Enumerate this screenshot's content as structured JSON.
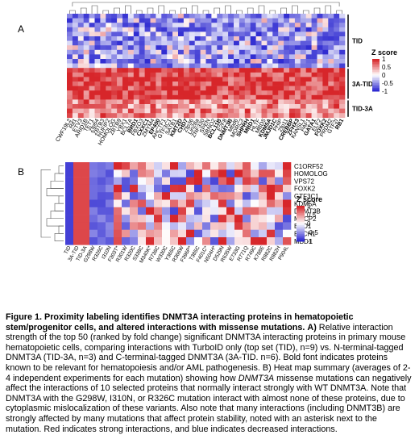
{
  "panel_a": {
    "label": "A",
    "group_labels": [
      "TID",
      "3A-TID",
      "TID-3A"
    ],
    "legend": {
      "title": "Z score",
      "ticks": [
        "1",
        "0.5",
        "0",
        "-0.5",
        "-1"
      ]
    },
    "columns": [
      "CWF19L2",
      "Rif1",
      "ETV3",
      "ARID1B",
      "TET1",
      "Zfp64",
      "ZBTB3",
      "NUFIP2",
      "HOMOLOG",
      "ZBTB9",
      "YBX1",
      "BCL7A",
      "BRD1",
      "FBXO3",
      "CXXC1",
      "ZMYM4",
      "EP400",
      "AHCTF1",
      "GTF3C1",
      "SATB1",
      "KMT2D",
      "CHD7",
      "Zfp36",
      "Lin28a",
      "ZNF330",
      "SPEN",
      "SBNO2",
      "BCL11B",
      "E2F8",
      "DNMT3B",
      "Mbd6",
      "MORC3",
      "SHPRH",
      "MBD1",
      "HLTF",
      "MBD5",
      "KDM5A",
      "JMJD1C",
      "PHIP",
      "Zfp11",
      "CREBBP",
      "ZFHX3",
      "KANSL1",
      "PAF1",
      "GATA1",
      "ELF2",
      "FOXK2",
      "PRDM2",
      "GTF2I",
      "RB1"
    ],
    "bold_columns": [
      "BRD1",
      "CXXC1",
      "EP400",
      "KMT2D",
      "CHD7",
      "BCL11B",
      "DNMT3B",
      "SHPRH",
      "MBD1",
      "KDM5A",
      "JMJD1C",
      "CREBBP",
      "ZFHX3",
      "GATA1",
      "FOXK2",
      "RB1"
    ]
  },
  "panel_b": {
    "label": "B",
    "legend": {
      "title": "Z score",
      "ticks": [
        "1",
        "0.5",
        "0",
        "-0.5",
        "-1"
      ]
    },
    "rows": [
      "C1ORF52",
      "HOMOLOG",
      "VPS72",
      "FOXK2",
      "GTF3C1",
      "KDM5A",
      "DNMT3B",
      "MECP2",
      "BRD1",
      "BACH1",
      "MBD1"
    ],
    "columns": [
      "TID",
      "3A-TID",
      "TID-3A",
      "G298W",
      "R326C",
      "I310N",
      "F303T*",
      "R301W",
      "R320C",
      "S338C",
      "M340K*",
      "R736C",
      "W330C",
      "Y365C",
      "R366W",
      "F396P*",
      "T385C",
      "F401C*",
      "N504H*",
      "D529N",
      "R635W",
      "E733G",
      "R771Q",
      "R749C",
      "K788E",
      "R882C",
      "R882H",
      "P904L"
    ]
  },
  "caption": {
    "figure_label": "Figure 1.",
    "title_text": "Proximity labeling identifies DNMT3A interacting proteins in hematopoietic stem/progenitor cells, and altered interactions with missense mutations.",
    "part_a_label": "A)",
    "part_a_text": "Relative interaction strength of the top 50 (ranked by fold change) significant DNMT3A interacting proteins in primary mouse hematopoietic cells, comparing interactions with TurboID only (top set (TID), n=9) vs. N-terminal-tagged DNMT3A (TID-3A, n=3) and C-terminal-tagged DNMT3A (3A-TID. n=6). Bold font indicates proteins known to be relevant for hematopoiesis and/or AML pathogenesis. B) Heat map summary (averages of 2-4 independent experiments for each mutation) showing how",
    "gene_italic": "DNMT3A",
    "part_b_text": "missense mutations can negatively affect the interactions of 10 selected proteins that normally interact strongly with WT DNMT3A. Note that DNMT3A with the G298W, I310N, or R326C mutation interact with almost none of these proteins, due to cytoplasmic mislocalization of these variants. Also note that many interactions (including DNMT3B) are strongly affected by many mutations that affect protein stability, noted with an asterisk next to the mutation. Red indicates strong interactions, and blue indicates decreased interactions."
  },
  "colors": {
    "red": "#d7262a",
    "blue": "#2f2bd1",
    "white": "#ffffff"
  }
}
